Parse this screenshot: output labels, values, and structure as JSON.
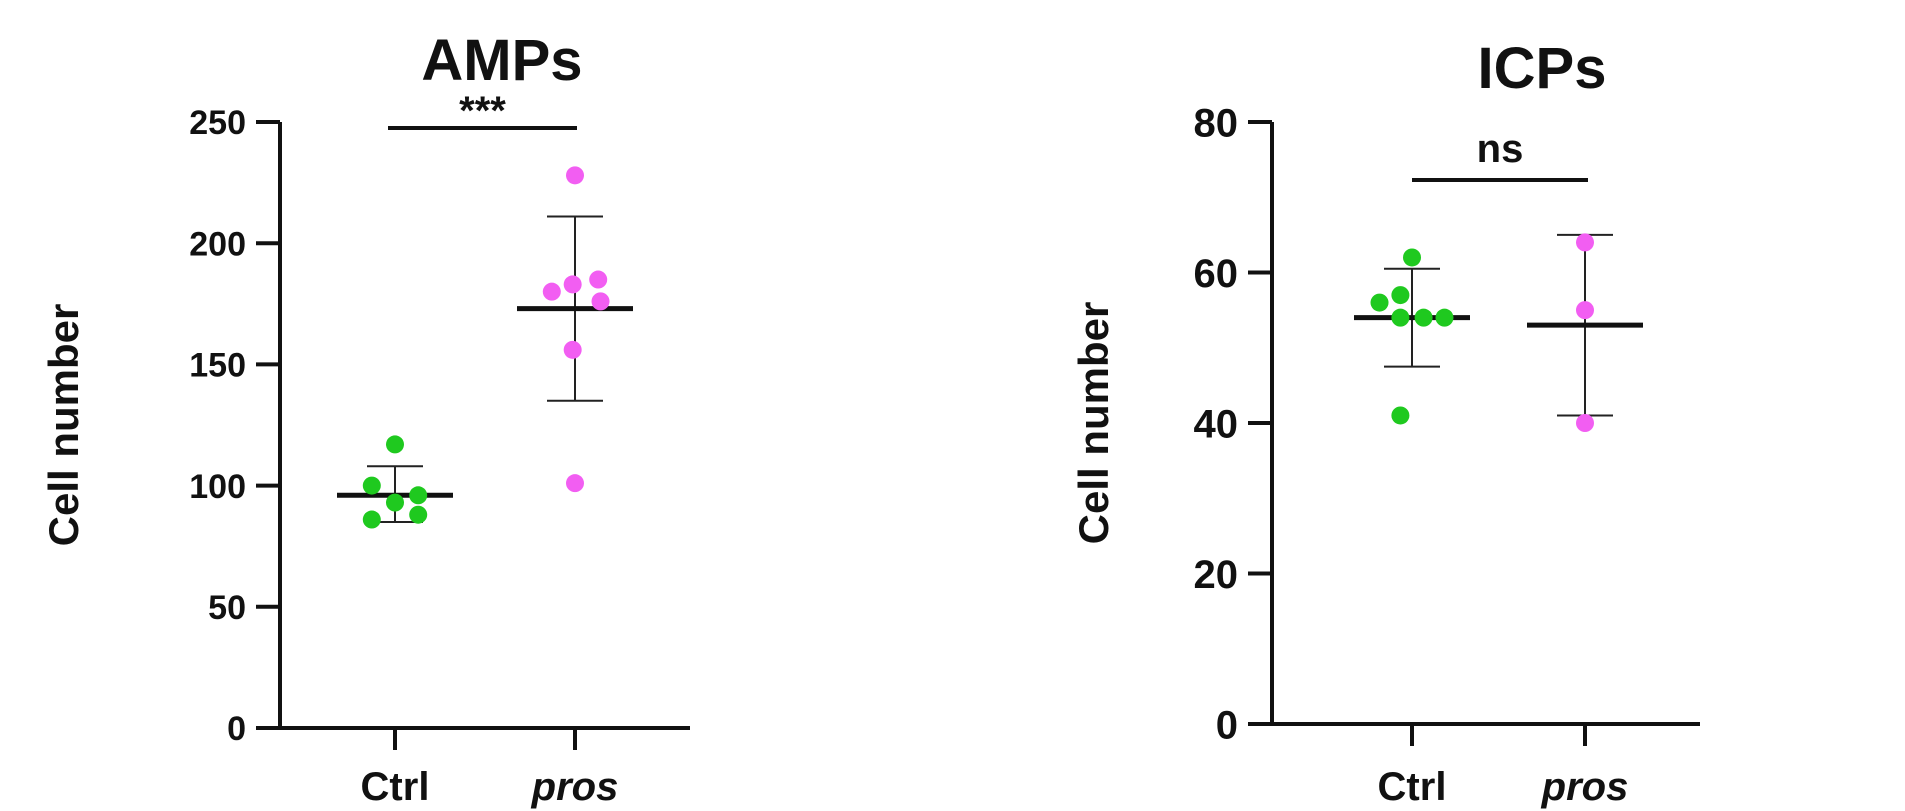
{
  "chart_data": [
    {
      "type": "scatter",
      "title": "AMPs",
      "ylabel": "Cell number",
      "xlabel": "",
      "ylim": [
        0,
        250
      ],
      "yticks": [
        0,
        50,
        100,
        150,
        200,
        250
      ],
      "categories": [
        "Ctrl",
        "pros"
      ],
      "italic_categories": [
        "pros"
      ],
      "significance": {
        "label": "***",
        "between": [
          "Ctrl",
          "pros"
        ]
      },
      "series": [
        {
          "category": "Ctrl",
          "color": "#1fc91f",
          "mean": 96,
          "err_low": 85,
          "err_high": 108,
          "points": [
            [
              -0.2,
              100
            ],
            [
              0.0,
              117
            ],
            [
              -0.2,
              86
            ],
            [
              0.0,
              93
            ],
            [
              0.2,
              96
            ],
            [
              0.2,
              88
            ]
          ]
        },
        {
          "category": "pros",
          "color": "#f25ef2",
          "mean": 173,
          "err_low": 135,
          "err_high": 211,
          "points": [
            [
              0.0,
              228
            ],
            [
              -0.2,
              180
            ],
            [
              -0.02,
              183
            ],
            [
              0.2,
              185
            ],
            [
              0.22,
              176
            ],
            [
              -0.02,
              156
            ],
            [
              0.0,
              101
            ]
          ]
        }
      ]
    },
    {
      "type": "scatter",
      "title": "ICPs",
      "ylabel": "Cell number",
      "xlabel": "",
      "ylim": [
        0,
        80
      ],
      "yticks": [
        0,
        20,
        40,
        60,
        80
      ],
      "categories": [
        "Ctrl",
        "pros"
      ],
      "italic_categories": [
        "pros"
      ],
      "significance": {
        "label": "ns",
        "between": [
          "Ctrl",
          "pros"
        ]
      },
      "series": [
        {
          "category": "Ctrl",
          "color": "#1fc91f",
          "mean": 54,
          "err_low": 47.5,
          "err_high": 60.5,
          "points": [
            [
              -0.28,
              56
            ],
            [
              -0.1,
              57
            ],
            [
              -0.1,
              54
            ],
            [
              0.0,
              62
            ],
            [
              0.1,
              54
            ],
            [
              0.28,
              54
            ],
            [
              -0.1,
              41
            ]
          ]
        },
        {
          "category": "pros",
          "color": "#f25ef2",
          "mean": 53,
          "err_low": 41,
          "err_high": 65,
          "points": [
            [
              0.0,
              64
            ],
            [
              0.0,
              55
            ],
            [
              0.0,
              40
            ]
          ]
        }
      ]
    }
  ]
}
